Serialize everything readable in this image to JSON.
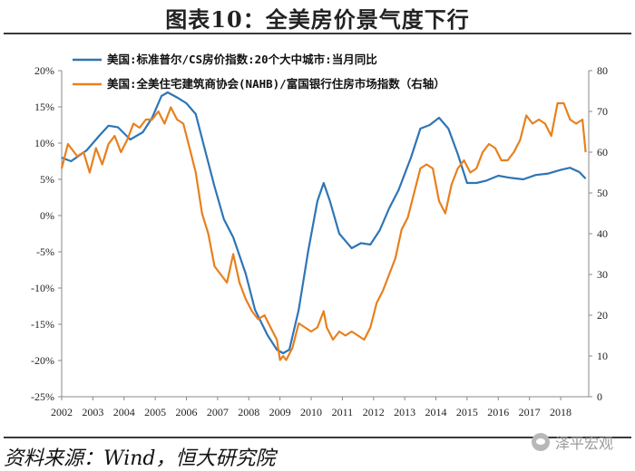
{
  "header": {
    "title": "图表10：全美房价景气度下行"
  },
  "footer": {
    "source": "资料来源：Wind，恒大研究院",
    "watermark": "泽平宏观"
  },
  "colors": {
    "series1": "#2E75B6",
    "series2": "#E8801E",
    "axis": "#888888"
  },
  "chart_data": {
    "type": "line",
    "title": "图表10：全美房价景气度下行",
    "x_ticks": [
      "2002",
      "2003",
      "2004",
      "2005",
      "2006",
      "2007",
      "2008",
      "2009",
      "2010",
      "2011",
      "2012",
      "2013",
      "2014",
      "2015",
      "2016",
      "2017",
      "2018"
    ],
    "y_left": {
      "range": [
        -25,
        20
      ],
      "ticks": [
        "20%",
        "15%",
        "10%",
        "5%",
        "0%",
        "-5%",
        "-10%",
        "-15%",
        "-20%",
        "-25%"
      ]
    },
    "y_right": {
      "range": [
        0,
        80
      ],
      "ticks": [
        "80",
        "70",
        "60",
        "50",
        "40",
        "30",
        "20",
        "10",
        "0"
      ]
    },
    "series": [
      {
        "name": "美国:标准普尔/CS房价指数:20个大中城市:当月同比",
        "axis": "left",
        "color": "#2E75B6",
        "points": [
          [
            2002.0,
            8
          ],
          [
            2002.3,
            7.5
          ],
          [
            2002.8,
            9
          ],
          [
            2003.2,
            11
          ],
          [
            2003.5,
            12.4
          ],
          [
            2003.8,
            12.2
          ],
          [
            2004.2,
            10.5
          ],
          [
            2004.6,
            11.5
          ],
          [
            2004.9,
            13.5
          ],
          [
            2005.2,
            16.5
          ],
          [
            2005.4,
            17
          ],
          [
            2005.7,
            16.3
          ],
          [
            2006.0,
            15.5
          ],
          [
            2006.3,
            14
          ],
          [
            2006.6,
            9
          ],
          [
            2006.9,
            4
          ],
          [
            2007.2,
            -0.5
          ],
          [
            2007.5,
            -3
          ],
          [
            2007.9,
            -8
          ],
          [
            2008.2,
            -13
          ],
          [
            2008.6,
            -16.5
          ],
          [
            2008.9,
            -18.5
          ],
          [
            2009.1,
            -19
          ],
          [
            2009.3,
            -18.5
          ],
          [
            2009.6,
            -13
          ],
          [
            2009.9,
            -5
          ],
          [
            2010.2,
            2
          ],
          [
            2010.4,
            4.5
          ],
          [
            2010.6,
            2
          ],
          [
            2010.9,
            -2.5
          ],
          [
            2011.3,
            -4.5
          ],
          [
            2011.6,
            -3.8
          ],
          [
            2011.9,
            -4
          ],
          [
            2012.2,
            -2
          ],
          [
            2012.5,
            1
          ],
          [
            2012.8,
            3.5
          ],
          [
            2013.2,
            8
          ],
          [
            2013.5,
            12
          ],
          [
            2013.8,
            12.5
          ],
          [
            2014.1,
            13.5
          ],
          [
            2014.4,
            12
          ],
          [
            2014.7,
            8.5
          ],
          [
            2015.0,
            4.5
          ],
          [
            2015.3,
            4.5
          ],
          [
            2015.6,
            4.8
          ],
          [
            2016.0,
            5.5
          ],
          [
            2016.4,
            5.2
          ],
          [
            2016.8,
            5
          ],
          [
            2017.2,
            5.6
          ],
          [
            2017.6,
            5.8
          ],
          [
            2018.0,
            6.3
          ],
          [
            2018.3,
            6.6
          ],
          [
            2018.6,
            6
          ],
          [
            2018.8,
            5.1
          ]
        ]
      },
      {
        "name": "美国:全美住宅建筑商协会(NAHB)/富国银行住房市场指数（右轴）",
        "axis": "right",
        "color": "#E8801E",
        "points": [
          [
            2002.0,
            56
          ],
          [
            2002.2,
            62
          ],
          [
            2002.5,
            59
          ],
          [
            2002.7,
            60
          ],
          [
            2002.9,
            55
          ],
          [
            2003.1,
            61
          ],
          [
            2003.3,
            57
          ],
          [
            2003.5,
            62
          ],
          [
            2003.7,
            64
          ],
          [
            2003.9,
            60
          ],
          [
            2004.1,
            63
          ],
          [
            2004.3,
            67
          ],
          [
            2004.5,
            66
          ],
          [
            2004.7,
            68
          ],
          [
            2004.9,
            68
          ],
          [
            2005.1,
            70
          ],
          [
            2005.3,
            67
          ],
          [
            2005.5,
            71
          ],
          [
            2005.7,
            68
          ],
          [
            2005.9,
            67
          ],
          [
            2006.1,
            61
          ],
          [
            2006.3,
            55
          ],
          [
            2006.5,
            45
          ],
          [
            2006.7,
            40
          ],
          [
            2006.9,
            32
          ],
          [
            2007.1,
            30
          ],
          [
            2007.3,
            28
          ],
          [
            2007.5,
            35
          ],
          [
            2007.7,
            28
          ],
          [
            2007.9,
            24
          ],
          [
            2008.1,
            21
          ],
          [
            2008.3,
            19
          ],
          [
            2008.5,
            20
          ],
          [
            2008.7,
            17
          ],
          [
            2008.9,
            14
          ],
          [
            2009.0,
            9
          ],
          [
            2009.1,
            10
          ],
          [
            2009.2,
            9
          ],
          [
            2009.4,
            12
          ],
          [
            2009.6,
            18
          ],
          [
            2009.8,
            17
          ],
          [
            2010.0,
            16
          ],
          [
            2010.2,
            17
          ],
          [
            2010.4,
            21
          ],
          [
            2010.5,
            17
          ],
          [
            2010.7,
            14
          ],
          [
            2010.9,
            16
          ],
          [
            2011.1,
            15
          ],
          [
            2011.3,
            16
          ],
          [
            2011.5,
            15
          ],
          [
            2011.7,
            14
          ],
          [
            2011.9,
            17
          ],
          [
            2012.1,
            23
          ],
          [
            2012.3,
            26
          ],
          [
            2012.5,
            30
          ],
          [
            2012.7,
            34
          ],
          [
            2012.9,
            41
          ],
          [
            2013.1,
            44
          ],
          [
            2013.3,
            50
          ],
          [
            2013.5,
            56
          ],
          [
            2013.7,
            57
          ],
          [
            2013.9,
            56
          ],
          [
            2014.1,
            48
          ],
          [
            2014.3,
            45
          ],
          [
            2014.5,
            52
          ],
          [
            2014.7,
            56
          ],
          [
            2014.9,
            58
          ],
          [
            2015.1,
            55
          ],
          [
            2015.3,
            56
          ],
          [
            2015.5,
            60
          ],
          [
            2015.7,
            62
          ],
          [
            2015.9,
            61
          ],
          [
            2016.1,
            58
          ],
          [
            2016.3,
            58
          ],
          [
            2016.5,
            60
          ],
          [
            2016.7,
            63
          ],
          [
            2016.9,
            69
          ],
          [
            2017.1,
            67
          ],
          [
            2017.3,
            68
          ],
          [
            2017.5,
            67
          ],
          [
            2017.7,
            64
          ],
          [
            2017.9,
            72
          ],
          [
            2018.1,
            72
          ],
          [
            2018.3,
            68
          ],
          [
            2018.5,
            67
          ],
          [
            2018.7,
            68
          ],
          [
            2018.8,
            60
          ]
        ]
      }
    ]
  }
}
